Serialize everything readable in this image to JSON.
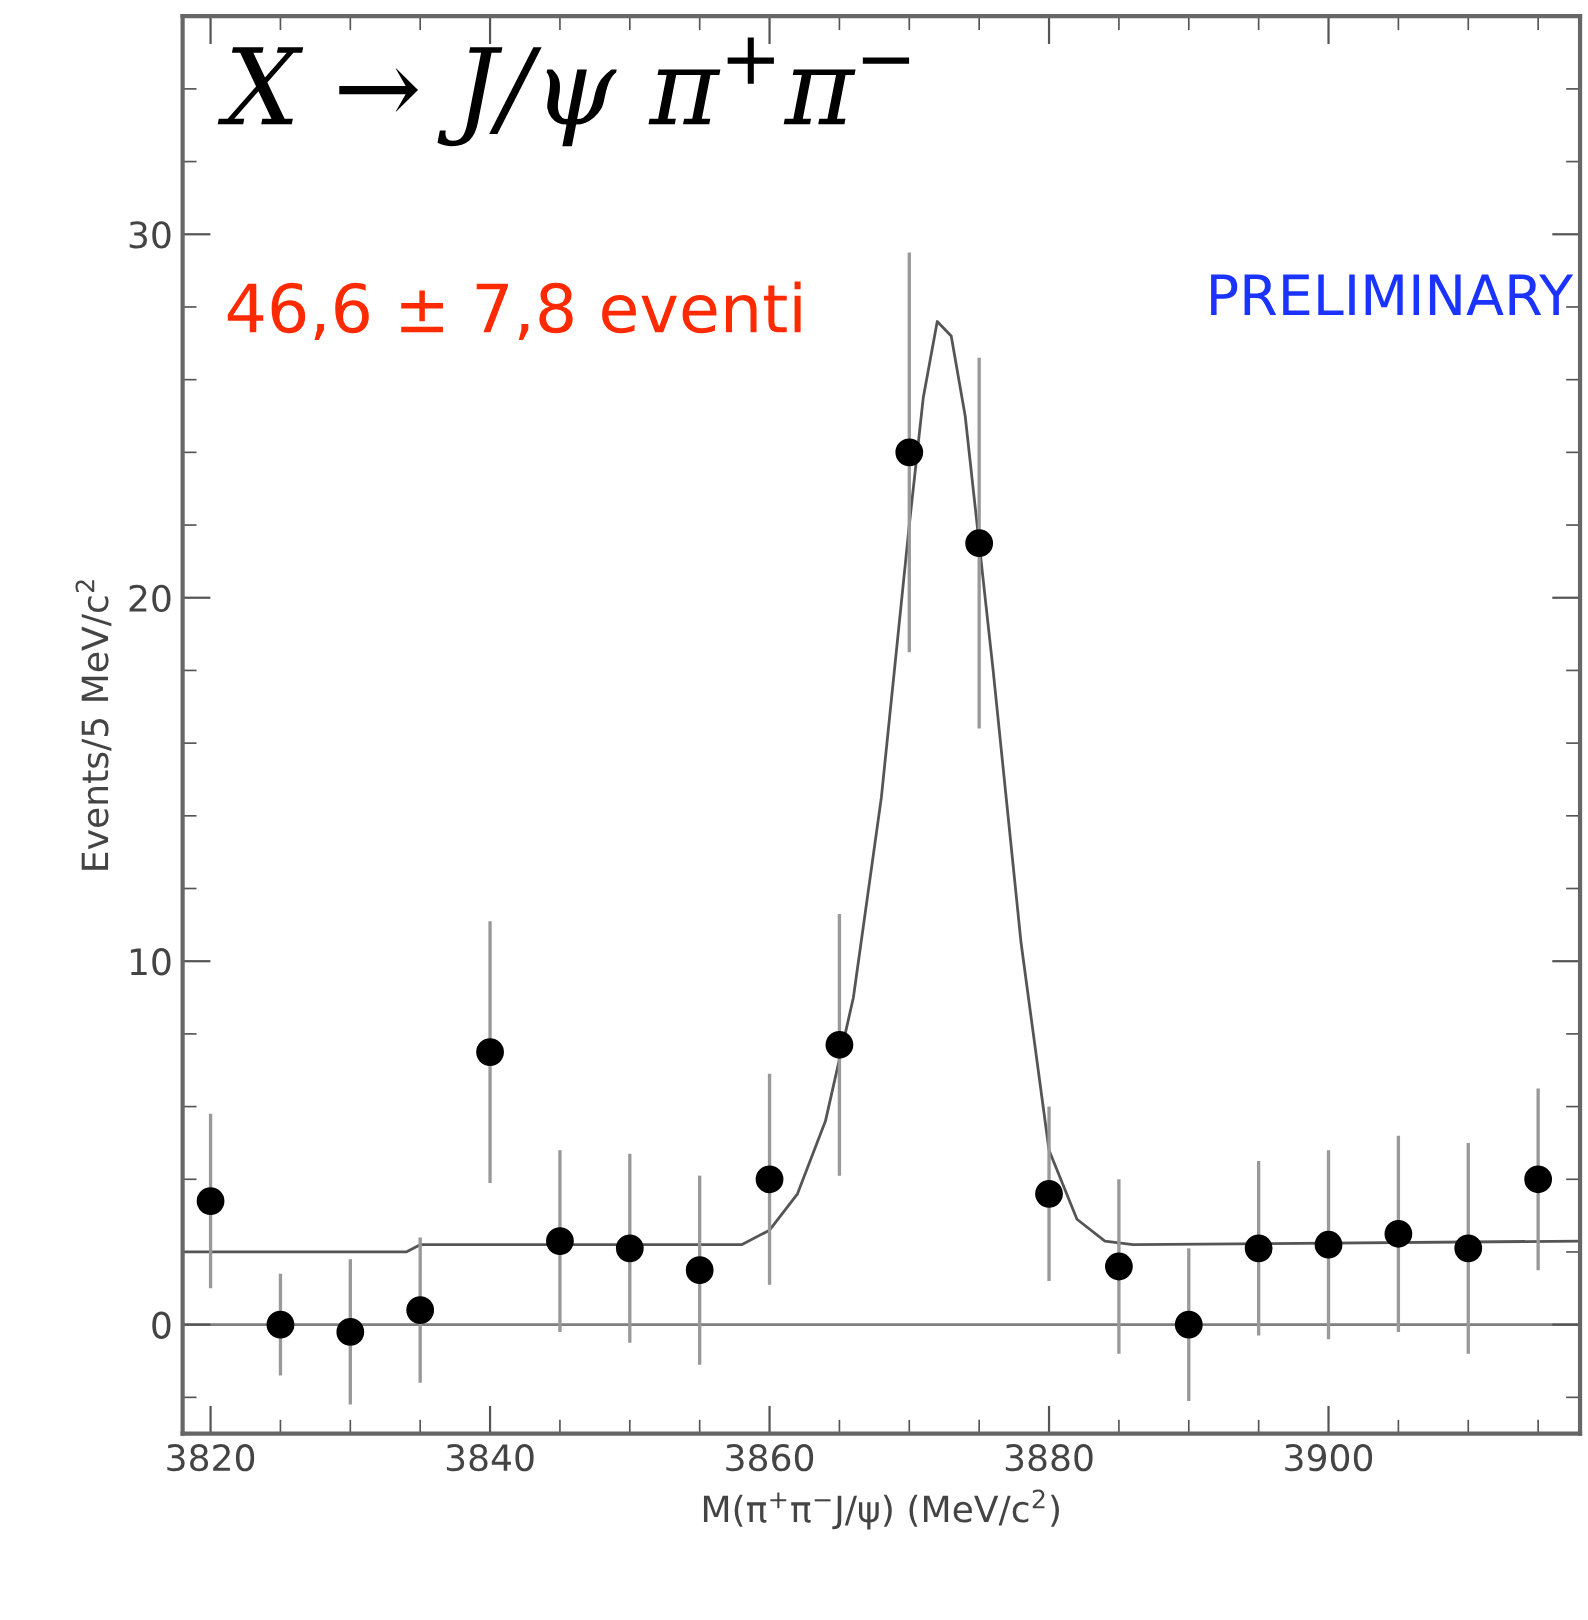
{
  "chart_data": {
    "type": "scatter",
    "title": "X → J/ψ π$^{+}$π$^{−}$",
    "xlabel": "M(π$^{+}$π$^{−}$J/ψ) (MeV/c$^{2}$)",
    "ylabel": "Events/5 MeV/c$^{2}$",
    "annotations": [
      "46,6 ± 7,8 eventi",
      "PRELIMINARY"
    ],
    "xlim": [
      3818,
      3918
    ],
    "ylim": [
      -3,
      36
    ],
    "xticks": [
      3820,
      3840,
      3860,
      3880,
      3900
    ],
    "yticks": [
      0,
      10,
      20,
      30
    ],
    "grid": false,
    "marker": "circle",
    "ref_lines": [
      {
        "axis": "y",
        "value": 0,
        "color": "#7f7f7f"
      }
    ],
    "series": [
      {
        "color": "#000000",
        "x": [
          3820,
          3825,
          3830,
          3835,
          3840,
          3845,
          3850,
          3855,
          3860,
          3865,
          3870,
          3875,
          3880,
          3885,
          3890,
          3895,
          3900,
          3905,
          3910,
          3915
        ],
        "values": [
          3.4,
          0.0,
          -0.2,
          0.4,
          7.5,
          2.3,
          2.1,
          1.5,
          4.0,
          7.7,
          24.0,
          21.5,
          3.6,
          1.6,
          0.0,
          2.1,
          2.2,
          2.5,
          2.1,
          4.0
        ],
        "errors": [
          2.4,
          1.4,
          2.0,
          2.0,
          3.6,
          2.5,
          2.6,
          2.6,
          2.9,
          3.6,
          5.5,
          5.1,
          2.4,
          2.4,
          2.1,
          2.4,
          2.6,
          2.7,
          2.9,
          2.5
        ]
      },
      {
        "type": "line",
        "color": "#555555",
        "marker": "none",
        "line_style": "solid",
        "x": [
          3818,
          3834,
          3835,
          3858,
          3860,
          3862,
          3864,
          3866,
          3868,
          3870,
          3871,
          3872,
          3873,
          3874,
          3876,
          3878,
          3880,
          3882,
          3884,
          3886,
          3918
        ],
        "values": [
          2.0,
          2.0,
          2.2,
          2.2,
          2.6,
          3.6,
          5.6,
          9.0,
          14.5,
          22.0,
          25.5,
          27.6,
          27.2,
          25.0,
          18.0,
          10.5,
          4.8,
          2.9,
          2.3,
          2.2,
          2.3
        ]
      }
    ]
  }
}
